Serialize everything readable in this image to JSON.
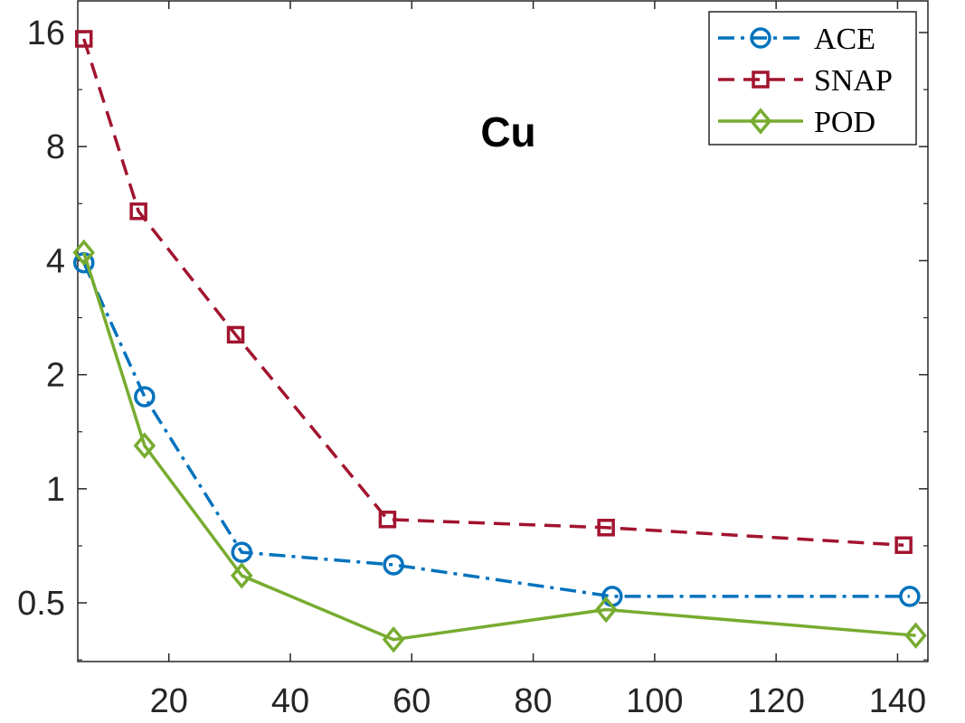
{
  "chart_data": {
    "type": "line",
    "title": "Cu",
    "xlabel": "",
    "ylabel": "",
    "yscale": "log2",
    "xlim": [
      5,
      145
    ],
    "ylim": [
      0.35,
      19.5
    ],
    "xticks": [
      20,
      40,
      60,
      80,
      100,
      120,
      140
    ],
    "xtick_labels": [
      "20",
      "40",
      "60",
      "80",
      "100",
      "120",
      "140"
    ],
    "yticks": [
      0.5,
      1,
      2,
      4,
      8,
      16
    ],
    "ytick_labels": [
      "0.5",
      "1",
      "2",
      "4",
      "8",
      "16"
    ],
    "grid": false,
    "legend_position": "top-right",
    "series": [
      {
        "name": "ACE",
        "color": "#0072BD",
        "line_style": "dash-dot",
        "marker": "circle",
        "x": [
          6,
          16,
          32,
          57,
          93,
          142
        ],
        "y": [
          3.95,
          1.75,
          0.68,
          0.63,
          0.52,
          0.52
        ]
      },
      {
        "name": "SNAP",
        "color": "#A2142F",
        "line_style": "dashed",
        "marker": "square",
        "x": [
          6,
          15,
          31,
          56,
          92,
          141
        ],
        "y": [
          15.4,
          5.4,
          2.55,
          0.83,
          0.79,
          0.71
        ]
      },
      {
        "name": "POD",
        "color": "#77AC30",
        "line_style": "solid",
        "marker": "diamond",
        "x": [
          6,
          16,
          32,
          57,
          92,
          143
        ],
        "y": [
          4.2,
          1.3,
          0.59,
          0.4,
          0.48,
          0.41
        ]
      }
    ]
  }
}
